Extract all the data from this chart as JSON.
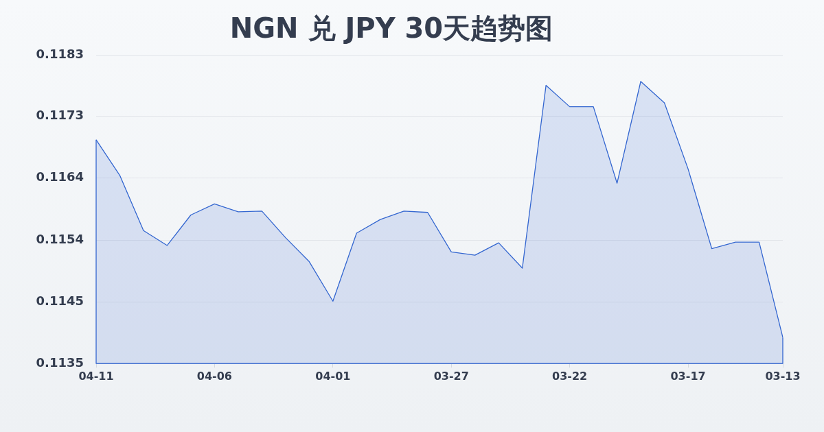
{
  "chart_data": {
    "type": "area",
    "title": "NGN 兑 JPY 30天趋势图",
    "categories": [
      "04-11",
      null,
      null,
      null,
      null,
      "04-06",
      null,
      null,
      null,
      null,
      "04-01",
      null,
      null,
      null,
      null,
      "03-27",
      null,
      null,
      null,
      null,
      "03-22",
      null,
      null,
      null,
      null,
      "03-17",
      null,
      null,
      null,
      "03-13"
    ],
    "values": [
      0.11695,
      0.1164,
      0.11555,
      0.11532,
      0.11579,
      0.11596,
      0.11584,
      0.11585,
      0.11544,
      0.11507,
      0.11446,
      0.11551,
      0.11572,
      0.11585,
      0.11583,
      0.11522,
      0.11517,
      0.11536,
      0.11497,
      0.11779,
      0.11746,
      0.11746,
      0.11628,
      0.11785,
      0.11752,
      0.1165,
      0.11527,
      0.11537,
      0.11537,
      0.1139
    ],
    "color": "#3366d0",
    "ylim": [
      0.1135,
      0.11826
    ],
    "yticks": [
      0.1135,
      {
        "value": 0.11445,
        "label": "0.1145"
      },
      0.1154,
      {
        "value": 0.11636,
        "label": "0.1164"
      },
      {
        "value": 0.11731,
        "label": "0.1173"
      },
      {
        "value": 0.11826,
        "label": "0.1183"
      }
    ],
    "grid": "y"
  }
}
